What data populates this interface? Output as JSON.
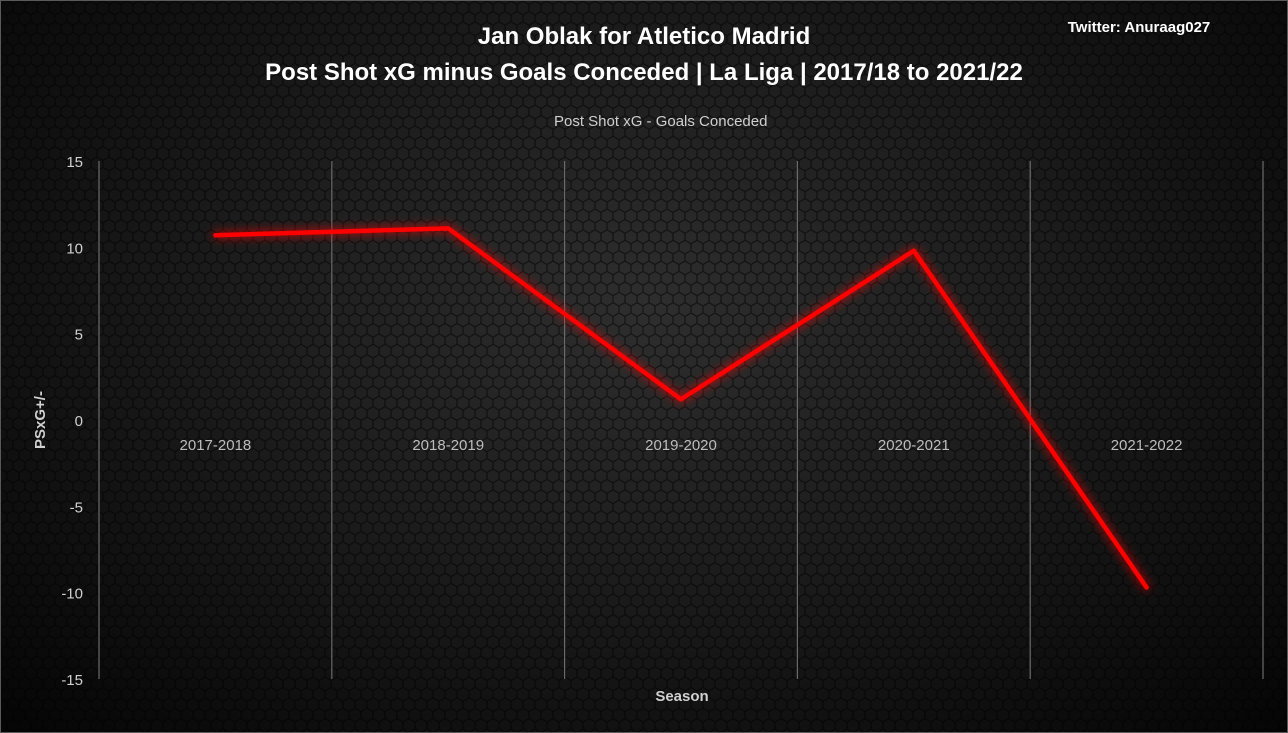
{
  "chart_data": {
    "type": "line",
    "title": "Jan Oblak for Atletico Madrid",
    "subtitle": "Post Shot xG minus Goals Conceded | La Liga | 2017/18 to 2021/22",
    "credit": "Twitter: Anuraag027",
    "xlabel": "Season",
    "ylabel": "PSxG+/-",
    "categories": [
      "2017-2018",
      "2018-2019",
      "2019-2020",
      "2020-2021",
      "2021-2022"
    ],
    "yticks": [
      "15",
      "10",
      "5",
      "0",
      "-5",
      "-10",
      "-15"
    ],
    "ylim": [
      -15,
      15
    ],
    "grid": "vertical",
    "legend_position": "top",
    "series": [
      {
        "name": "Post Shot xG - Goals Conceded",
        "color": "#ff0000",
        "values": [
          10.7,
          11.1,
          1.2,
          9.8,
          -9.7
        ]
      }
    ]
  }
}
